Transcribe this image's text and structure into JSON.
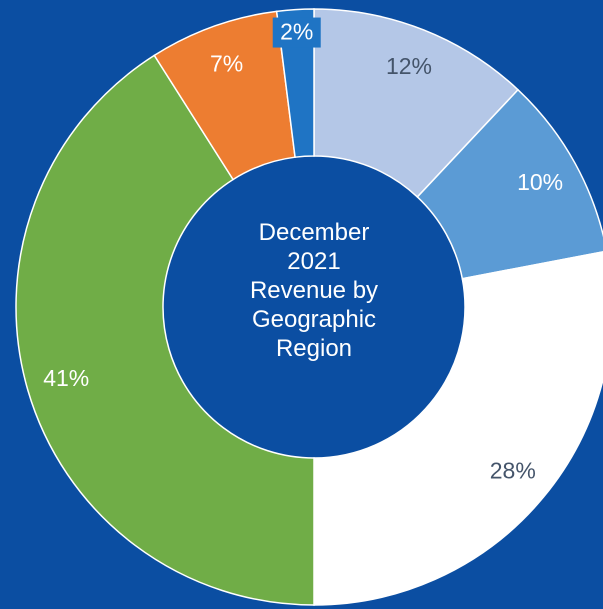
{
  "chart_data": {
    "type": "donut",
    "title": "December 2021 Revenue by Geographic Region",
    "categories": [
      null,
      null,
      null,
      null,
      null,
      null
    ],
    "values": [
      12,
      10,
      28,
      41,
      7,
      2
    ],
    "value_labels": [
      "12%",
      "10%",
      "28%",
      "41%",
      "7%",
      "2%"
    ],
    "colors": [
      "#b4c7e7",
      "#5b9bd5",
      "#ffffff",
      "#70ad47",
      "#ed7d31",
      "#1f74c4"
    ],
    "label_colors": [
      "#44546a",
      "#ffffff",
      "#44546a",
      "#ffffff",
      "#ffffff",
      "#ffffff"
    ]
  }
}
